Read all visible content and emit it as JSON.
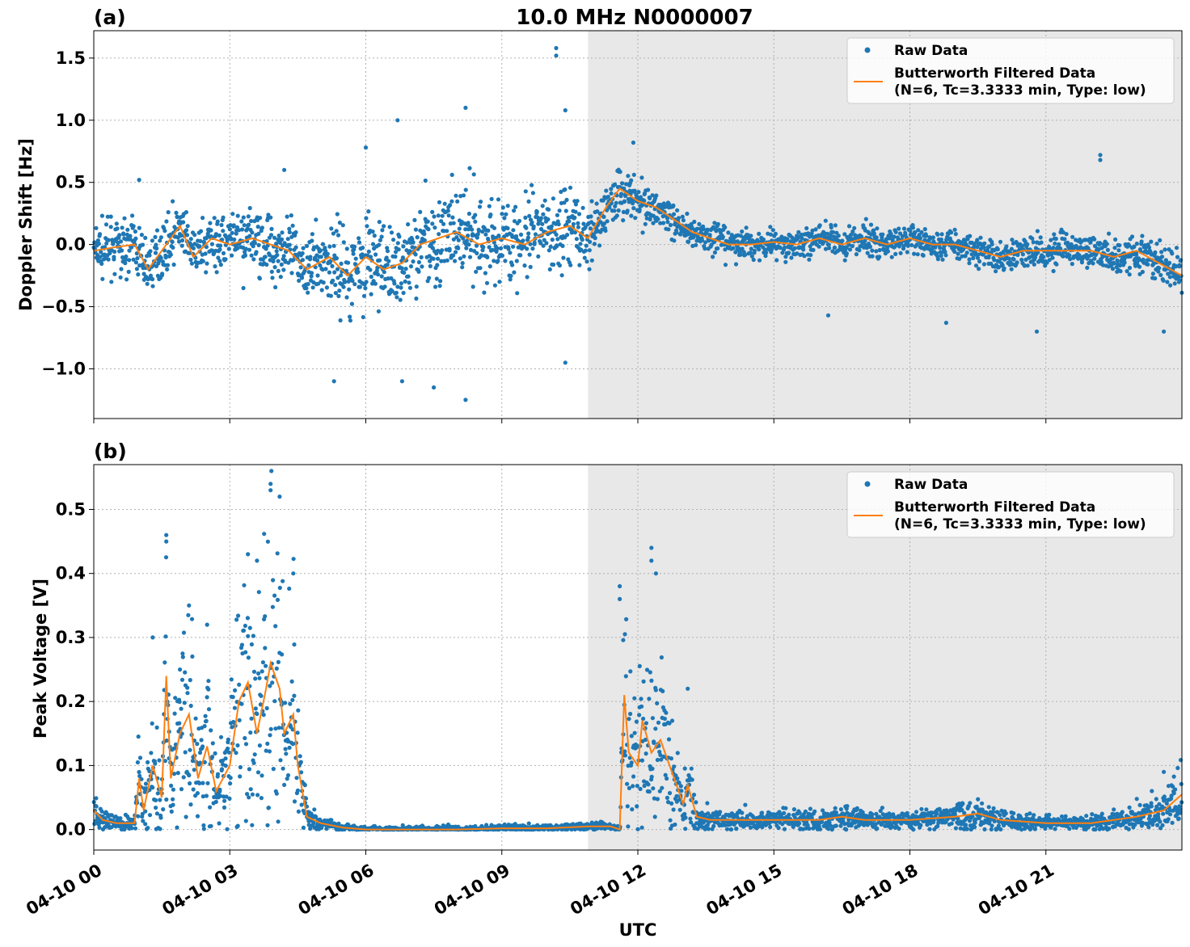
{
  "chart_data": {
    "type": "line",
    "title": "10.0 MHz N0000007",
    "xlabel": "UTC",
    "x_ticks": [
      "04-10 00",
      "04-10 03",
      "04-10 06",
      "04-10 09",
      "04-10 12",
      "04-10 15",
      "04-10 18",
      "04-10 21"
    ],
    "x_tick_hours": [
      0,
      3,
      6,
      9,
      12,
      15,
      18,
      21
    ],
    "x_range_hours": [
      0,
      24
    ],
    "shaded_region_hours": [
      10.9,
      24
    ],
    "colors": {
      "raw": "#1f77b4",
      "filtered": "#ff7f0e",
      "shade": "#e8e8e8",
      "grid": "#b0b0b0"
    },
    "legend": {
      "raw_label": "Raw Data",
      "filtered_line1": "Butterworth Filtered Data",
      "filtered_line2": "(N=6, Tc=3.3333 min, Type: low)",
      "placement": "top-right"
    },
    "panels": [
      {
        "label": "(a)",
        "ylabel": "Doppler Shift [Hz]",
        "ylim": [
          -1.4,
          1.72
        ],
        "y_ticks": [
          -1.0,
          -0.5,
          0.0,
          0.5,
          1.0,
          1.5
        ],
        "y_tick_labels": [
          "−1.0",
          "−0.5",
          "0.0",
          "0.5",
          "1.0",
          "1.5"
        ],
        "series": [
          {
            "name": "Butterworth Filtered Data",
            "x_hours": [
              0,
              0.5,
              0.9,
              1.2,
              1.5,
              1.9,
              2.2,
              2.6,
              3.0,
              3.5,
              3.9,
              4.3,
              4.7,
              5.2,
              5.6,
              6.0,
              6.4,
              6.8,
              7.2,
              7.6,
              8.0,
              8.5,
              9.0,
              9.5,
              10.0,
              10.5,
              10.9,
              11.3,
              11.6,
              12.0,
              12.4,
              12.8,
              13.2,
              13.6,
              14.0,
              14.5,
              15.0,
              15.5,
              16.0,
              16.5,
              17.0,
              17.5,
              18.0,
              18.5,
              19.0,
              19.5,
              20.0,
              20.5,
              21.0,
              21.5,
              22.0,
              22.5,
              23.0,
              23.5,
              24.0
            ],
            "y": [
              -0.05,
              -0.02,
              0.0,
              -0.2,
              -0.05,
              0.15,
              -0.1,
              0.05,
              0.0,
              0.05,
              0.0,
              -0.05,
              -0.2,
              -0.1,
              -0.25,
              -0.1,
              -0.2,
              -0.15,
              0.0,
              0.05,
              0.1,
              0.0,
              0.05,
              0.0,
              0.1,
              0.15,
              0.05,
              0.3,
              0.45,
              0.35,
              0.3,
              0.2,
              0.1,
              0.05,
              0.0,
              0.0,
              0.02,
              0.0,
              0.05,
              0.0,
              0.05,
              0.0,
              0.05,
              0.0,
              0.0,
              -0.05,
              -0.1,
              -0.05,
              -0.05,
              -0.05,
              -0.05,
              -0.1,
              -0.05,
              -0.15,
              -0.25
            ]
          },
          {
            "name": "Raw Data",
            "spread_hours": [
              0,
              2.5,
              4.5,
              6.5,
              8.5,
              10.9,
              11.5,
              12.5,
              14.0,
              16.0,
              18.0,
              20.0,
              22.0,
              24.0
            ],
            "spread": [
              0.25,
              0.25,
              0.35,
              0.45,
              0.45,
              0.35,
              0.25,
              0.2,
              0.15,
              0.14,
              0.15,
              0.15,
              0.18,
              0.2
            ],
            "outliers": [
              [
                1.0,
                0.52
              ],
              [
                3.3,
                -0.35
              ],
              [
                4.2,
                0.6
              ],
              [
                5.3,
                -1.1
              ],
              [
                6.0,
                0.78
              ],
              [
                6.7,
                1.0
              ],
              [
                6.8,
                -1.1
              ],
              [
                7.5,
                -1.15
              ],
              [
                8.2,
                1.1
              ],
              [
                8.2,
                -1.25
              ],
              [
                10.2,
                1.58
              ],
              [
                10.2,
                1.52
              ],
              [
                10.4,
                1.08
              ],
              [
                10.4,
                -0.95
              ],
              [
                11.9,
                0.82
              ],
              [
                16.2,
                -0.57
              ],
              [
                18.8,
                -0.63
              ],
              [
                20.8,
                -0.7
              ],
              [
                22.2,
                0.72
              ],
              [
                22.2,
                0.68
              ],
              [
                23.6,
                -0.7
              ]
            ]
          }
        ]
      },
      {
        "label": "(b)",
        "ylabel": "Peak Voltage [V]",
        "ylim": [
          -0.032,
          0.57
        ],
        "y_ticks": [
          0.0,
          0.1,
          0.2,
          0.3,
          0.4,
          0.5
        ],
        "y_tick_labels": [
          "0.0",
          "0.1",
          "0.2",
          "0.3",
          "0.4",
          "0.5"
        ],
        "series": [
          {
            "name": "Butterworth Filtered Data",
            "x_hours": [
              0,
              0.2,
              0.5,
              0.9,
              1.0,
              1.1,
              1.3,
              1.5,
              1.6,
              1.7,
              1.9,
              2.1,
              2.3,
              2.5,
              2.7,
              3.0,
              3.2,
              3.4,
              3.6,
              3.8,
              3.9,
              4.0,
              4.1,
              4.2,
              4.4,
              4.5,
              4.7,
              5.0,
              5.5,
              6.0,
              7.0,
              8.0,
              9.0,
              10.0,
              10.9,
              11.4,
              11.6,
              11.7,
              11.8,
              12.0,
              12.1,
              12.3,
              12.5,
              12.8,
              13.0,
              13.1,
              13.3,
              13.6,
              14.0,
              15.0,
              16.0,
              16.5,
              17.0,
              18.0,
              19.0,
              19.5,
              20.0,
              21.0,
              22.0,
              23.0,
              23.6,
              24.0
            ],
            "y": [
              0.03,
              0.015,
              0.01,
              0.01,
              0.08,
              0.03,
              0.1,
              0.05,
              0.24,
              0.08,
              0.15,
              0.18,
              0.08,
              0.13,
              0.06,
              0.1,
              0.2,
              0.23,
              0.15,
              0.22,
              0.26,
              0.24,
              0.22,
              0.15,
              0.18,
              0.1,
              0.02,
              0.01,
              0.003,
              0.0,
              0.0,
              0.0,
              0.002,
              0.002,
              0.005,
              0.005,
              0.0,
              0.21,
              0.12,
              0.1,
              0.17,
              0.12,
              0.14,
              0.08,
              0.04,
              0.07,
              0.02,
              0.015,
              0.015,
              0.015,
              0.015,
              0.02,
              0.015,
              0.015,
              0.02,
              0.025,
              0.015,
              0.01,
              0.01,
              0.02,
              0.03,
              0.055
            ]
          },
          {
            "name": "Raw Data",
            "outliers": [
              [
                1.3,
                0.3
              ],
              [
                1.6,
                0.46
              ],
              [
                1.6,
                0.45
              ],
              [
                1.9,
                0.25
              ],
              [
                2.1,
                0.35
              ],
              [
                2.5,
                0.32
              ],
              [
                3.4,
                0.43
              ],
              [
                3.6,
                0.42
              ],
              [
                3.9,
                0.54
              ],
              [
                3.9,
                0.53
              ],
              [
                4.1,
                0.52
              ],
              [
                4.4,
                0.4
              ],
              [
                11.6,
                0.38
              ],
              [
                11.6,
                0.36
              ],
              [
                12.3,
                0.44
              ],
              [
                12.3,
                0.42
              ],
              [
                12.4,
                0.4
              ],
              [
                13.1,
                0.22
              ],
              [
                23.6,
                0.09
              ]
            ]
          }
        ]
      }
    ]
  }
}
